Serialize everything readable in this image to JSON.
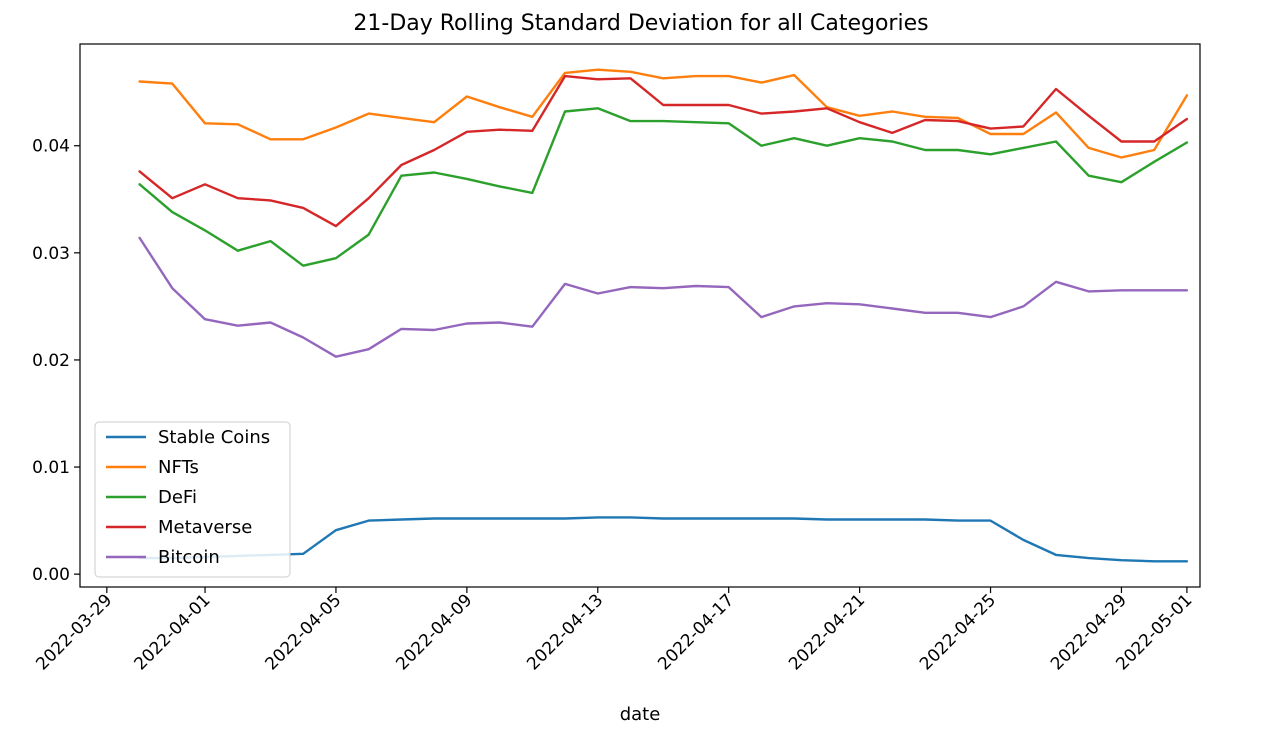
{
  "chart_data": {
    "type": "line",
    "title": "21-Day Rolling Standard Deviation for all Categories",
    "xlabel": "date",
    "ylabel": "",
    "ylim": [
      -0.0012,
      0.0495
    ],
    "xlim": [
      "2022-03-28",
      "2022-05-02"
    ],
    "grid": false,
    "legend_position": "lower-left",
    "x": [
      "2022-03-30",
      "2022-03-31",
      "2022-04-01",
      "2022-04-02",
      "2022-04-03",
      "2022-04-04",
      "2022-04-05",
      "2022-04-06",
      "2022-04-07",
      "2022-04-08",
      "2022-04-09",
      "2022-04-10",
      "2022-04-11",
      "2022-04-12",
      "2022-04-13",
      "2022-04-14",
      "2022-04-15",
      "2022-04-16",
      "2022-04-17",
      "2022-04-18",
      "2022-04-19",
      "2022-04-20",
      "2022-04-21",
      "2022-04-22",
      "2022-04-23",
      "2022-04-24",
      "2022-04-25",
      "2022-04-26",
      "2022-04-27",
      "2022-04-28",
      "2022-04-29",
      "2022-04-30",
      "2022-05-01"
    ],
    "x_ticks": [
      "2022-03-29",
      "2022-04-01",
      "2022-04-05",
      "2022-04-09",
      "2022-04-13",
      "2022-04-17",
      "2022-04-21",
      "2022-04-25",
      "2022-04-29",
      "2022-05-01"
    ],
    "y_ticks": [
      "0.00",
      "0.01",
      "0.02",
      "0.03",
      "0.04"
    ],
    "y_tick_values": [
      0,
      0.01,
      0.02,
      0.03,
      0.04
    ],
    "series": [
      {
        "name": "Stable Coins",
        "color": "#1f77b4",
        "values": [
          0.0015,
          0.0015,
          0.0016,
          0.0017,
          0.0018,
          0.0019,
          0.0041,
          0.005,
          0.0051,
          0.0052,
          0.0052,
          0.0052,
          0.0052,
          0.0052,
          0.0053,
          0.0053,
          0.0052,
          0.0052,
          0.0052,
          0.0052,
          0.0052,
          0.0051,
          0.0051,
          0.0051,
          0.0051,
          0.005,
          0.005,
          0.0032,
          0.0018,
          0.0015,
          0.0013,
          0.0012,
          0.0012
        ]
      },
      {
        "name": "NFTs",
        "color": "#ff7f0e",
        "values": [
          0.046,
          0.0458,
          0.0421,
          0.042,
          0.0406,
          0.0406,
          0.0417,
          0.043,
          0.0426,
          0.0422,
          0.0446,
          0.0436,
          0.0427,
          0.0468,
          0.0471,
          0.0469,
          0.0463,
          0.0465,
          0.0465,
          0.0459,
          0.0466,
          0.0436,
          0.0428,
          0.0432,
          0.0427,
          0.0426,
          0.0411,
          0.0411,
          0.0431,
          0.0398,
          0.0389,
          0.0396,
          0.0447
        ]
      },
      {
        "name": "DeFi",
        "color": "#2ca02c",
        "values": [
          0.0364,
          0.0338,
          0.0321,
          0.0302,
          0.0311,
          0.0288,
          0.0295,
          0.0317,
          0.0372,
          0.0375,
          0.0369,
          0.0362,
          0.0356,
          0.0432,
          0.0435,
          0.0423,
          0.0423,
          0.0422,
          0.0421,
          0.04,
          0.0407,
          0.04,
          0.0407,
          0.0404,
          0.0396,
          0.0396,
          0.0392,
          0.0398,
          0.0404,
          0.0372,
          0.0366,
          0.0385,
          0.0403
        ]
      },
      {
        "name": "Metaverse",
        "color": "#d62728",
        "values": [
          0.0376,
          0.0351,
          0.0364,
          0.0351,
          0.0349,
          0.0342,
          0.0325,
          0.0351,
          0.0382,
          0.0396,
          0.0413,
          0.0415,
          0.0414,
          0.0465,
          0.0462,
          0.0463,
          0.0438,
          0.0438,
          0.0438,
          0.043,
          0.0432,
          0.0435,
          0.0422,
          0.0412,
          0.0424,
          0.0423,
          0.0416,
          0.0418,
          0.0453,
          0.0428,
          0.0404,
          0.0404,
          0.0425
        ]
      },
      {
        "name": "Bitcoin",
        "color": "#9467bd",
        "values": [
          0.0314,
          0.0267,
          0.0238,
          0.0232,
          0.0235,
          0.0221,
          0.0203,
          0.021,
          0.0229,
          0.0228,
          0.0234,
          0.0235,
          0.0231,
          0.0271,
          0.0262,
          0.0268,
          0.0267,
          0.0269,
          0.0268,
          0.024,
          0.025,
          0.0253,
          0.0252,
          0.0248,
          0.0244,
          0.0244,
          0.024,
          0.025,
          0.0273,
          0.0264,
          0.0265,
          0.0265,
          0.0265
        ]
      }
    ]
  }
}
